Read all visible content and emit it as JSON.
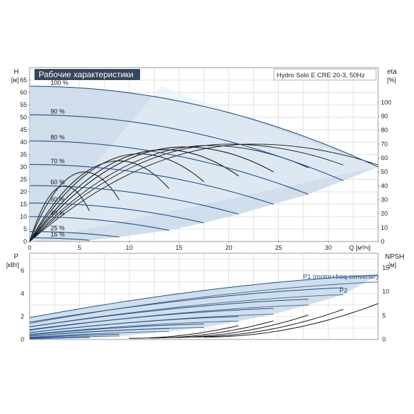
{
  "chart_data": [
    {
      "type": "line",
      "title": "Рабочие характеристики",
      "product_label": "Hydro Solo E CRE 20-3, 50Hz",
      "ylabel_left": "H",
      "ylabel_left_unit": "[м]",
      "ylabel_right": "eta",
      "ylabel_right_unit": "[%]",
      "xlabel": "Q [м³/ч]",
      "xlim": [
        0,
        35
      ],
      "ylim_left": [
        0,
        70
      ],
      "ylim_right": [
        0,
        125
      ],
      "x_ticks": [
        "0",
        "5",
        "10",
        "15",
        "20",
        "25",
        "30"
      ],
      "y_ticks_left": [
        "0",
        "5",
        "10",
        "15",
        "20",
        "25",
        "30",
        "35",
        "40",
        "45",
        "50",
        "55",
        "60",
        "65"
      ],
      "y_ticks_right": [
        "0",
        "10",
        "20",
        "30",
        "40",
        "50",
        "60",
        "70",
        "80",
        "90",
        "100"
      ],
      "grid": true,
      "speed_labels": [
        "100 %",
        "90 %",
        "80 %",
        "70 %",
        "60 %",
        "50 %",
        "40 %",
        "25 %",
        "16 %"
      ],
      "series": [
        {
          "name": "100 %",
          "shutoff_head": 62.5,
          "q_max": 35,
          "h_end": 30
        },
        {
          "name": "90 %",
          "shutoff_head": 51,
          "q_max": 31.5,
          "h_end": 24.5
        },
        {
          "name": "80 %",
          "shutoff_head": 40.5,
          "q_max": 28,
          "h_end": 19
        },
        {
          "name": "70 %",
          "shutoff_head": 31,
          "q_max": 24.5,
          "h_end": 15
        },
        {
          "name": "60 %",
          "shutoff_head": 22.5,
          "q_max": 21,
          "h_end": 11
        },
        {
          "name": "50 %",
          "shutoff_head": 15.5,
          "q_max": 17.5,
          "h_end": 7.5
        },
        {
          "name": "40 %",
          "shutoff_head": 10,
          "q_max": 14,
          "h_end": 4.5
        },
        {
          "name": "25 %",
          "shutoff_head": 4,
          "q_max": 9,
          "h_end": 1.8
        },
        {
          "name": "16 %",
          "shutoff_head": 1.5,
          "q_max": 6,
          "h_end": 0.5
        }
      ],
      "efficiency_curves": [
        {
          "q_peak": 22.5,
          "eta_peak": 70,
          "q_end": 35,
          "eta_end": 55
        },
        {
          "q_peak": 20,
          "eta_peak": 70,
          "q_end": 31.5,
          "eta_end": 55
        },
        {
          "q_peak": 18,
          "eta_peak": 69,
          "q_end": 28,
          "eta_end": 53
        },
        {
          "q_peak": 15.5,
          "eta_peak": 68,
          "q_end": 24.5,
          "eta_end": 50
        },
        {
          "q_peak": 13.5,
          "eta_peak": 66,
          "q_end": 21,
          "eta_end": 47
        },
        {
          "q_peak": 11,
          "eta_peak": 63,
          "q_end": 17.5,
          "eta_end": 43
        },
        {
          "q_peak": 9,
          "eta_peak": 58,
          "q_end": 14,
          "eta_end": 38
        },
        {
          "q_peak": 5.5,
          "eta_peak": 50,
          "q_end": 9,
          "eta_end": 30
        },
        {
          "q_peak": 3.5,
          "eta_peak": 40,
          "q_end": 6,
          "eta_end": 22
        }
      ]
    },
    {
      "type": "line",
      "ylabel_left": "P",
      "ylabel_left_unit": "[кВт]",
      "ylabel_right": "NPSH",
      "ylabel_right_unit": "[м]",
      "xlim": [
        0,
        35
      ],
      "ylim_left": [
        0,
        7.5
      ],
      "ylim_right": [
        0,
        18
      ],
      "y_ticks_left": [
        "0",
        "2",
        "4",
        "6"
      ],
      "y_ticks_right": [
        "0",
        "5",
        "10",
        "15"
      ],
      "grid": true,
      "series_labels": {
        "p1": "P1 (motor+freq.converter)",
        "p2": "P2"
      },
      "power_curves": [
        {
          "p1_start": 1.9,
          "p1_end": 5.6,
          "p2_start": 1.4,
          "p2_end": 5.0,
          "q_max": 35
        },
        {
          "p1_start": 1.5,
          "p1_end": 4.5,
          "p2_start": 1.1,
          "p2_end": 3.9,
          "q_max": 31.5
        },
        {
          "p1_start": 1.1,
          "p1_end": 3.5,
          "p2_start": 0.8,
          "p2_end": 3.0,
          "q_max": 28
        },
        {
          "p1_start": 0.85,
          "p1_end": 2.7,
          "p2_start": 0.6,
          "p2_end": 2.2,
          "q_max": 24.5
        },
        {
          "p1_start": 0.6,
          "p1_end": 2.0,
          "p2_start": 0.45,
          "p2_end": 1.6,
          "q_max": 21
        },
        {
          "p1_start": 0.4,
          "p1_end": 1.35,
          "p2_start": 0.3,
          "p2_end": 1.05,
          "q_max": 17.5
        },
        {
          "p1_start": 0.3,
          "p1_end": 0.95,
          "p2_start": 0.2,
          "p2_end": 0.7,
          "q_max": 14
        },
        {
          "p1_start": 0.15,
          "p1_end": 0.45,
          "p2_start": 0.1,
          "p2_end": 0.3,
          "q_max": 9
        },
        {
          "p1_start": 0.08,
          "p1_end": 0.25,
          "p2_start": 0.05,
          "p2_end": 0.15,
          "q_max": 6
        }
      ],
      "npsh_curves": [
        {
          "q_start": 17.5,
          "n_start": 0.5,
          "q_end": 35,
          "n_end": 7.5
        },
        {
          "q_start": 16,
          "n_start": 0.5,
          "q_end": 31.5,
          "n_end": 6.3
        },
        {
          "q_start": 14,
          "n_start": 0.4,
          "q_end": 28,
          "n_end": 5.1
        },
        {
          "q_start": 12,
          "n_start": 0.3,
          "q_end": 24.5,
          "n_end": 3.9
        },
        {
          "q_start": 10,
          "n_start": 0.25,
          "q_end": 21,
          "n_end": 2.9
        }
      ]
    }
  ]
}
